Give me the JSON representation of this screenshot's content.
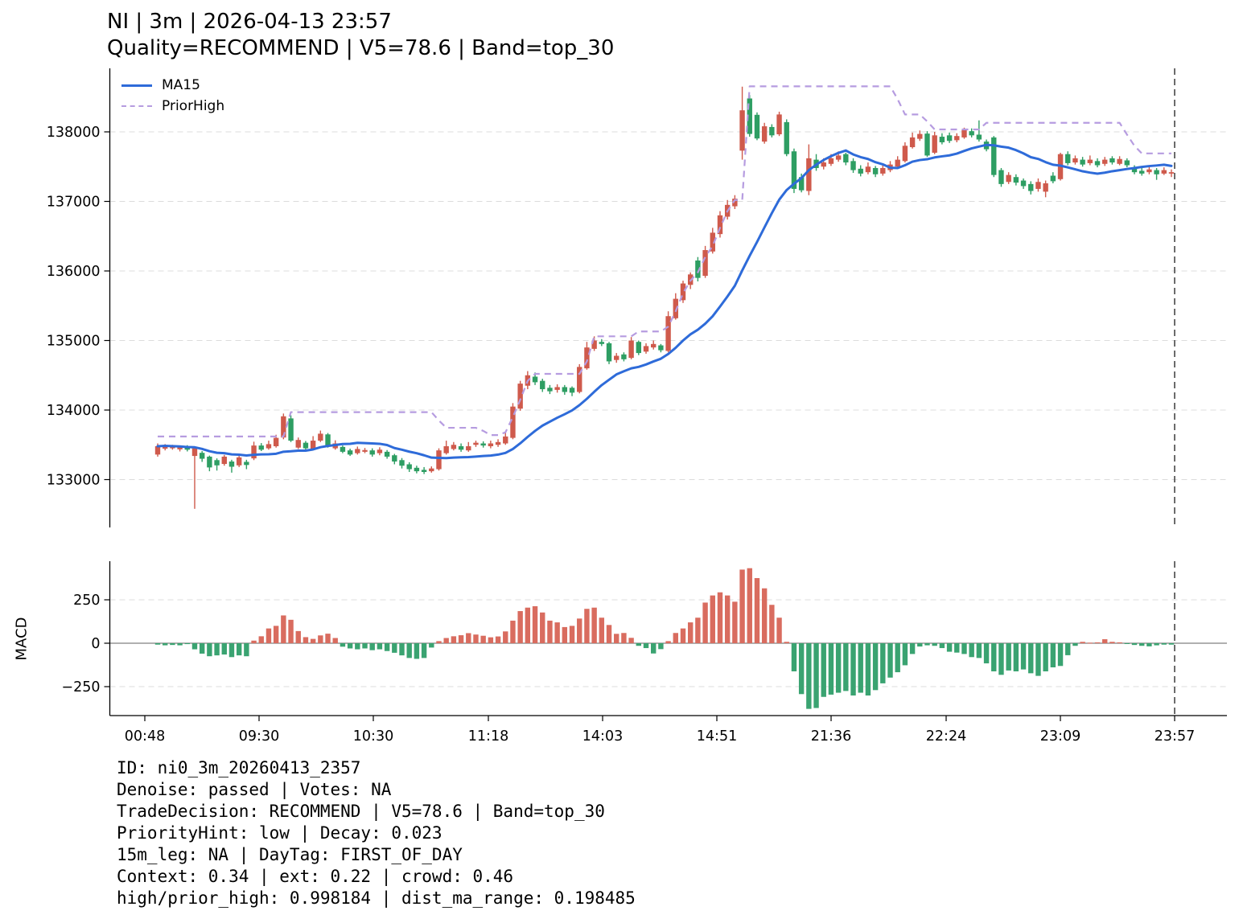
{
  "title": "NI | 3m | 2026-04-13 23:57",
  "subtitle": "Quality=RECOMMEND | V5=78.6 | Band=top_30",
  "legend": {
    "items": [
      {
        "label": "MA15",
        "style": "solid"
      },
      {
        "label": "PriorHigh",
        "style": "dashed"
      }
    ]
  },
  "price_axis": {
    "tick_values": [
      133000,
      134000,
      135000,
      136000,
      137000,
      138000
    ]
  },
  "time_axis": {
    "tick_labels": [
      "00:48",
      "09:30",
      "10:30",
      "11:18",
      "14:03",
      "14:51",
      "21:36",
      "22:24",
      "23:09",
      "23:57"
    ]
  },
  "macd_axis": {
    "label": "MACD",
    "tick_values": [
      250,
      0,
      -250
    ]
  },
  "footer": {
    "lines": [
      "ID: ni0_3m_20260413_2357",
      "Denoise: passed | Votes: NA",
      "TradeDecision: RECOMMEND | V5=78.6 | Band=top_30",
      "PriorityHint: low | Decay: 0.023",
      "15m_leg: NA | DayTag: FIRST_OF_DAY",
      "Context: 0.34 | ext: 0.22 | crowd: 0.46",
      "high/prior_high: 0.998184 | dist_ma_range: 0.198485"
    ]
  },
  "colors": {
    "up_candle": "#cf5a4c",
    "down_candle": "#2e9e63",
    "ma15": "#2e6bd9",
    "prior_high": "#b69ce0",
    "macd_pos": "#d96c5f",
    "macd_neg": "#3aa371",
    "grid": "#dcdcdc",
    "zero_line": "#808080",
    "marker": "#474747",
    "axis": "#000000"
  },
  "chart_data": {
    "type": "candlestick+macd",
    "title": "NI | 3m | 2026-04-13 23:57",
    "n_bars": 138,
    "up_color_convention": "red = close above open, green = close below open",
    "x_tick_labels": [
      "00:48",
      "09:30",
      "10:30",
      "11:18",
      "14:03",
      "14:51",
      "21:36",
      "22:24",
      "23:09",
      "23:57"
    ],
    "price_ylim": [
      132300,
      138900
    ],
    "macd_ylim": [
      -430,
      470
    ],
    "marker_time": "23:57",
    "ohlc": [
      [
        133360,
        133520,
        133330,
        133480
      ],
      [
        133445,
        133510,
        133420,
        133490
      ],
      [
        133450,
        133500,
        133430,
        133475
      ],
      [
        133435,
        133490,
        133405,
        133465
      ],
      [
        133475,
        133495,
        133405,
        133430
      ],
      [
        133340,
        133470,
        132580,
        133450
      ],
      [
        133385,
        133410,
        133255,
        133300
      ],
      [
        133330,
        133345,
        133120,
        133175
      ],
      [
        133280,
        133305,
        133130,
        133205
      ],
      [
        133225,
        133355,
        133200,
        133330
      ],
      [
        133260,
        133285,
        133100,
        133185
      ],
      [
        133205,
        133340,
        133180,
        133320
      ],
      [
        133255,
        133285,
        133150,
        133210
      ],
      [
        133305,
        133545,
        133280,
        133490
      ],
      [
        133490,
        133525,
        133410,
        133430
      ],
      [
        133450,
        133560,
        133430,
        133510
      ],
      [
        133480,
        133645,
        133460,
        133600
      ],
      [
        133605,
        133950,
        133580,
        133910
      ],
      [
        133880,
        133925,
        133540,
        133560
      ],
      [
        133460,
        133605,
        133440,
        133570
      ],
      [
        133530,
        133555,
        133420,
        133450
      ],
      [
        133440,
        133625,
        133430,
        133560
      ],
      [
        133560,
        133705,
        133540,
        133660
      ],
      [
        133650,
        133670,
        133460,
        133480
      ],
      [
        133450,
        133565,
        133430,
        133520
      ],
      [
        133470,
        133490,
        133380,
        133400
      ],
      [
        133420,
        133445,
        133340,
        133360
      ],
      [
        133380,
        133475,
        133360,
        133440
      ],
      [
        133400,
        133455,
        133380,
        133425
      ],
      [
        133420,
        133450,
        133330,
        133360
      ],
      [
        133380,
        133465,
        133350,
        133430
      ],
      [
        133400,
        133425,
        133300,
        133330
      ],
      [
        133350,
        133370,
        133220,
        133260
      ],
      [
        133280,
        133310,
        133160,
        133200
      ],
      [
        133220,
        133250,
        133110,
        133150
      ],
      [
        133170,
        133200,
        133090,
        133120
      ],
      [
        133140,
        133180,
        133080,
        133110
      ],
      [
        133120,
        133190,
        133100,
        133160
      ],
      [
        133150,
        133450,
        133130,
        133420
      ],
      [
        133380,
        133560,
        133360,
        133480
      ],
      [
        133440,
        133540,
        133420,
        133500
      ],
      [
        133480,
        133520,
        133400,
        133430
      ],
      [
        133420,
        133540,
        133400,
        133480
      ],
      [
        133500,
        133560,
        133470,
        133530
      ],
      [
        133520,
        133550,
        133460,
        133490
      ],
      [
        133480,
        133560,
        133450,
        133520
      ],
      [
        133500,
        133580,
        133470,
        133540
      ],
      [
        133520,
        133680,
        133500,
        133620
      ],
      [
        133600,
        134100,
        133580,
        134050
      ],
      [
        134020,
        134420,
        133990,
        134380
      ],
      [
        134350,
        134560,
        134300,
        134500
      ],
      [
        134480,
        134540,
        134360,
        134400
      ],
      [
        134420,
        134450,
        134260,
        134300
      ],
      [
        134320,
        134360,
        134230,
        134270
      ],
      [
        134290,
        134370,
        134250,
        134330
      ],
      [
        134330,
        134360,
        134220,
        134260
      ],
      [
        134320,
        134340,
        134200,
        134250
      ],
      [
        134260,
        134660,
        134240,
        134620
      ],
      [
        134600,
        134980,
        134580,
        134900
      ],
      [
        134880,
        135060,
        134850,
        135000
      ],
      [
        134980,
        135020,
        134920,
        134950
      ],
      [
        134960,
        134980,
        134660,
        134700
      ],
      [
        134720,
        134820,
        134680,
        134780
      ],
      [
        134800,
        134830,
        134700,
        134730
      ],
      [
        134750,
        135050,
        134730,
        135000
      ],
      [
        134980,
        135000,
        134790,
        134820
      ],
      [
        134840,
        134960,
        134810,
        134920
      ],
      [
        134900,
        135000,
        134870,
        134950
      ],
      [
        134930,
        134950,
        134830,
        134860
      ],
      [
        134850,
        135420,
        134830,
        135350
      ],
      [
        135320,
        135680,
        135300,
        135600
      ],
      [
        135580,
        135860,
        135540,
        135820
      ],
      [
        135800,
        135980,
        135740,
        135950
      ],
      [
        136150,
        136200,
        135850,
        135900
      ],
      [
        135930,
        136360,
        135900,
        136300
      ],
      [
        136280,
        136620,
        136250,
        136550
      ],
      [
        136530,
        136860,
        136480,
        136800
      ],
      [
        136780,
        137020,
        136740,
        136950
      ],
      [
        136930,
        137090,
        136890,
        137040
      ],
      [
        137730,
        138650,
        137600,
        138310
      ],
      [
        138480,
        138530,
        137930,
        137970
      ],
      [
        138245,
        138280,
        137880,
        137905
      ],
      [
        137860,
        138130,
        137830,
        138080
      ],
      [
        138070,
        138110,
        137920,
        137950
      ],
      [
        137965,
        138290,
        137940,
        138250
      ],
      [
        138140,
        138180,
        137650,
        137680
      ],
      [
        137720,
        137760,
        137120,
        137180
      ],
      [
        137350,
        137400,
        137130,
        137160
      ],
      [
        137150,
        137820,
        137090,
        137620
      ],
      [
        137600,
        137680,
        137440,
        137480
      ],
      [
        137500,
        137620,
        137460,
        137560
      ],
      [
        137540,
        137680,
        137510,
        137620
      ],
      [
        137600,
        137720,
        137570,
        137660
      ],
      [
        137680,
        137700,
        137520,
        137560
      ],
      [
        137580,
        137620,
        137410,
        137450
      ],
      [
        137470,
        137520,
        137360,
        137400
      ],
      [
        137420,
        137560,
        137390,
        137500
      ],
      [
        137480,
        137510,
        137350,
        137390
      ],
      [
        137400,
        137540,
        137370,
        137480
      ],
      [
        137450,
        137580,
        137420,
        137530
      ],
      [
        137500,
        137650,
        137470,
        137600
      ],
      [
        137580,
        137850,
        137560,
        137800
      ],
      [
        137780,
        137990,
        137760,
        137920
      ],
      [
        137900,
        138020,
        137870,
        137970
      ],
      [
        137975,
        138010,
        137640,
        137660
      ],
      [
        137700,
        138000,
        137680,
        137950
      ],
      [
        137930,
        137980,
        137820,
        137850
      ],
      [
        137950,
        137990,
        137840,
        137870
      ],
      [
        137880,
        137980,
        137850,
        137940
      ],
      [
        137920,
        138060,
        137900,
        138030
      ],
      [
        138010,
        138050,
        137920,
        137950
      ],
      [
        137960,
        138165,
        137860,
        137890
      ],
      [
        137860,
        137890,
        137720,
        137750
      ],
      [
        137920,
        137940,
        137350,
        137380
      ],
      [
        137450,
        137480,
        137210,
        137250
      ],
      [
        137280,
        137420,
        137250,
        137380
      ],
      [
        137350,
        137390,
        137230,
        137270
      ],
      [
        137300,
        137330,
        137180,
        137220
      ],
      [
        137250,
        137290,
        137100,
        137150
      ],
      [
        137180,
        137330,
        137140,
        137280
      ],
      [
        137140,
        137300,
        137060,
        137260
      ],
      [
        137370,
        137420,
        137260,
        137290
      ],
      [
        137320,
        137700,
        137300,
        137680
      ],
      [
        137680,
        137720,
        137520,
        137550
      ],
      [
        137560,
        137660,
        137530,
        137620
      ],
      [
        137600,
        137640,
        137500,
        137530
      ],
      [
        137550,
        137660,
        137520,
        137600
      ],
      [
        137580,
        137620,
        137490,
        137520
      ],
      [
        137540,
        137640,
        137510,
        137600
      ],
      [
        137620,
        137650,
        137530,
        137560
      ],
      [
        137540,
        137650,
        137520,
        137610
      ],
      [
        137590,
        137620,
        137490,
        137520
      ],
      [
        137480,
        137520,
        137390,
        137420
      ],
      [
        137440,
        137480,
        137370,
        137400
      ],
      [
        137420,
        137500,
        137390,
        137460
      ],
      [
        137450,
        137480,
        137310,
        137390
      ],
      [
        137400,
        137490,
        137380,
        137450
      ],
      [
        137400,
        137460,
        137350,
        137420
      ]
    ],
    "ma15": "rolling mean of close, window 15, min_periods 1",
    "prior_high": [
      133620,
      133620,
      133620,
      133620,
      133620,
      133620,
      133620,
      133620,
      133620,
      133620,
      133620,
      133620,
      133620,
      133620,
      133620,
      133620,
      133620,
      133620,
      133970,
      133970,
      133970,
      133970,
      133970,
      133970,
      133970,
      133970,
      133970,
      133970,
      133970,
      133970,
      133970,
      133970,
      133970,
      133970,
      133970,
      133970,
      133970,
      133970,
      133850,
      133745,
      133745,
      133745,
      133745,
      133745,
      133700,
      133640,
      133640,
      133680,
      133900,
      134150,
      134420,
      134520,
      134520,
      134520,
      134520,
      134520,
      134520,
      134520,
      134700,
      135060,
      135060,
      135060,
      135060,
      135060,
      135060,
      135130,
      135130,
      135130,
      135130,
      135200,
      135420,
      135680,
      135860,
      135980,
      136200,
      136360,
      136620,
      136860,
      137020,
      137020,
      138655,
      138655,
      138655,
      138655,
      138655,
      138655,
      138655,
      138655,
      138655,
      138655,
      138655,
      138655,
      138655,
      138655,
      138655,
      138655,
      138655,
      138655,
      138655,
      138655,
      138470,
      138250,
      138250,
      138250,
      138150,
      138035,
      138035,
      138035,
      138035,
      138035,
      138035,
      138035,
      138130,
      138130,
      138130,
      138130,
      138130,
      138130,
      138130,
      138130,
      138130,
      138130,
      138130,
      138130,
      138130,
      138130,
      138130,
      138130,
      138130,
      138130,
      138130,
      137960,
      137800,
      137690,
      137690,
      137690,
      137690,
      137690
    ],
    "macd": [
      -8,
      -12,
      -10,
      -12,
      -5,
      -35,
      -60,
      -75,
      -70,
      -65,
      -80,
      -70,
      -75,
      15,
      40,
      85,
      100,
      160,
      135,
      70,
      35,
      25,
      45,
      55,
      30,
      -20,
      -30,
      -35,
      -30,
      -40,
      -35,
      -45,
      -55,
      -70,
      -85,
      -90,
      -85,
      -25,
      12,
      30,
      40,
      46,
      58,
      50,
      43,
      34,
      39,
      68,
      130,
      185,
      205,
      213,
      177,
      130,
      120,
      93,
      100,
      142,
      198,
      205,
      147,
      105,
      54,
      59,
      31,
      -15,
      -28,
      -59,
      -34,
      12,
      59,
      85,
      120,
      147,
      234,
      275,
      293,
      275,
      239,
      424,
      432,
      375,
      316,
      221,
      147,
      8,
      -162,
      -293,
      -378,
      -373,
      -309,
      -296,
      -285,
      -275,
      -301,
      -285,
      -301,
      -270,
      -231,
      -198,
      -167,
      -127,
      -62,
      -19,
      -12,
      -15,
      -28,
      -49,
      -54,
      -62,
      -80,
      -85,
      -116,
      -162,
      -182,
      -157,
      -162,
      -151,
      -173,
      -188,
      -162,
      -139,
      -131,
      -69,
      -15,
      8,
      3,
      5,
      23,
      8,
      5,
      -3,
      -10,
      -15,
      -18,
      -12,
      -8,
      -8
    ]
  }
}
